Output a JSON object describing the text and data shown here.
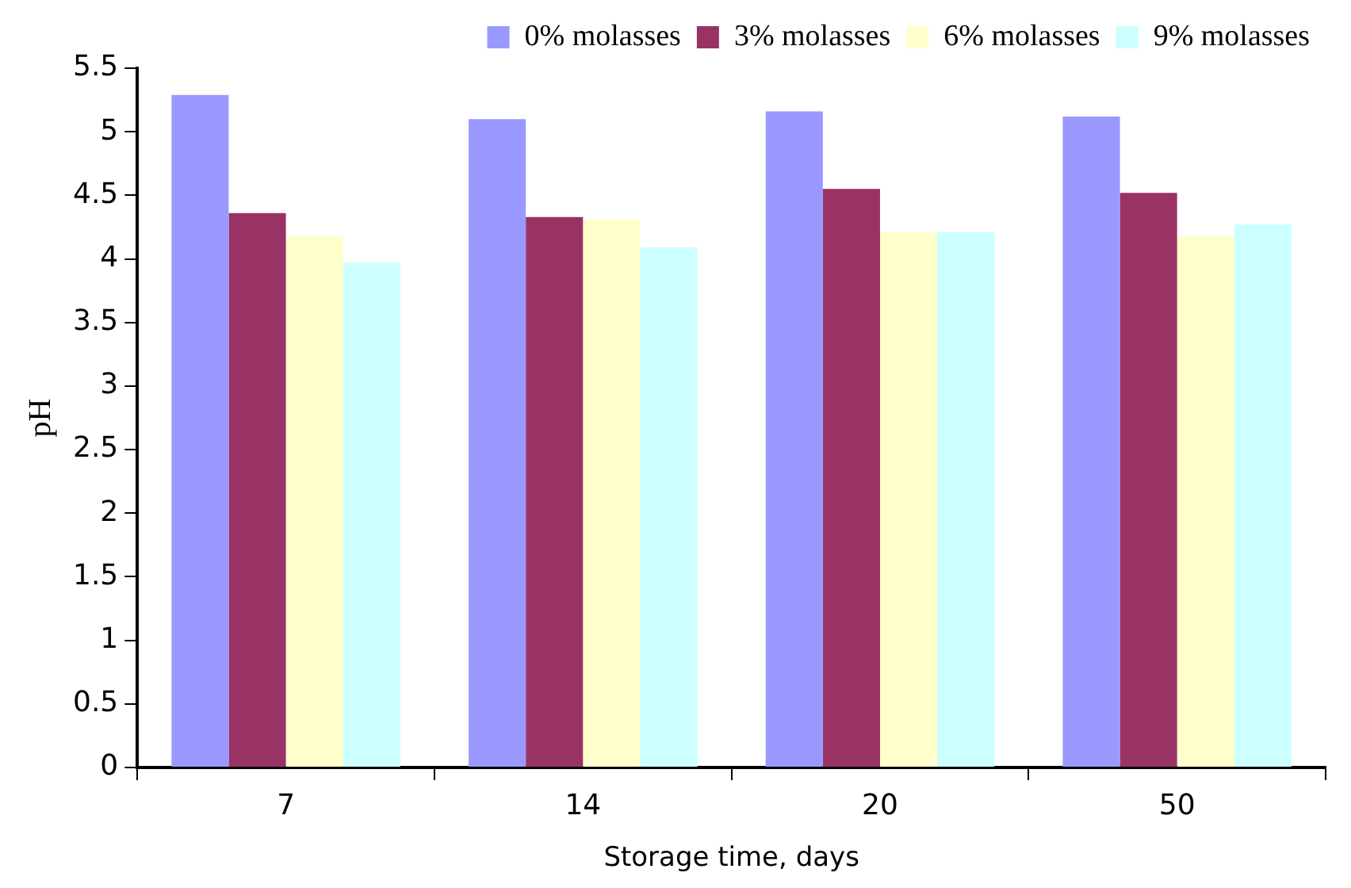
{
  "chart_data": {
    "type": "bar",
    "xlabel": "Storage time, days",
    "ylabel": "pH",
    "categories": [
      "7",
      "14",
      "20",
      "50"
    ],
    "series": [
      {
        "name": "0% molasses",
        "color": "#9999ff",
        "values": [
          5.29,
          5.1,
          5.16,
          5.12
        ]
      },
      {
        "name": "3% molasses",
        "color": "#993366",
        "values": [
          4.36,
          4.33,
          4.55,
          4.52
        ]
      },
      {
        "name": "6% molasses",
        "color": "#ffffcc",
        "values": [
          4.18,
          4.31,
          4.21,
          4.18
        ]
      },
      {
        "name": "9% molasses",
        "color": "#ccffff",
        "values": [
          3.97,
          4.09,
          4.21,
          4.27
        ]
      }
    ],
    "ylim": [
      0,
      5.5
    ],
    "yticks": [
      0,
      0.5,
      1,
      1.5,
      2,
      2.5,
      3,
      3.5,
      4,
      4.5,
      5,
      5.5
    ],
    "grid": false,
    "legend": "top right"
  }
}
